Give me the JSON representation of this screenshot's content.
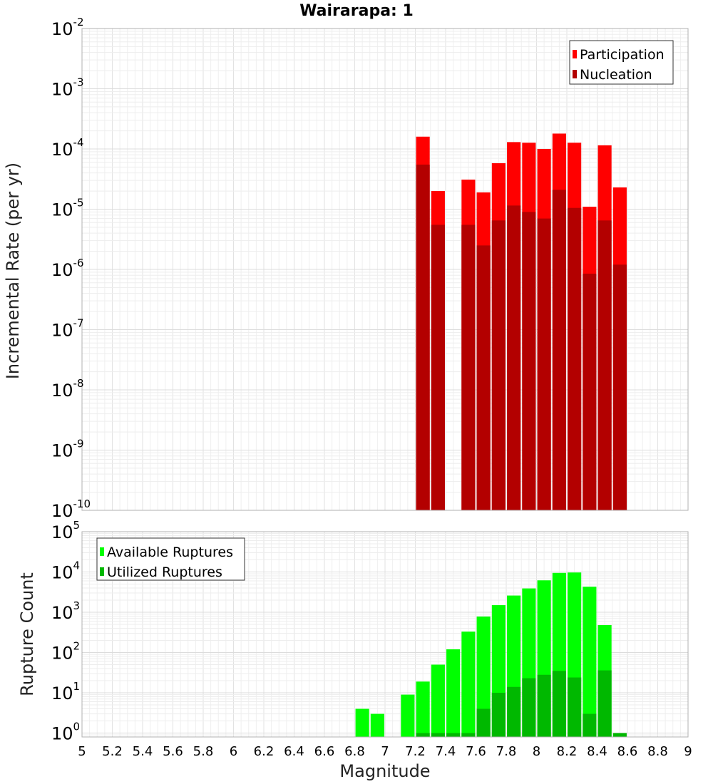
{
  "chart_data": [
    {
      "type": "bar",
      "title": "Wairarapa: 1",
      "xlabel": "",
      "ylabel": "Incremental Rate (per yr)",
      "yscale": "log",
      "ylim": [
        1e-10,
        0.01
      ],
      "xlim": [
        5,
        9
      ],
      "grid": true,
      "legend_position": "top-right",
      "x": [
        7.25,
        7.35,
        7.55,
        7.65,
        7.75,
        7.85,
        7.95,
        8.05,
        8.15,
        8.25,
        8.35,
        8.45,
        8.55
      ],
      "series": [
        {
          "name": "Participation",
          "color": "#ff0000",
          "values": [
            0.00016,
            2e-05,
            3.1e-05,
            1.9e-05,
            5.8e-05,
            0.00013,
            0.000127,
            0.0001,
            0.00018,
            0.000127,
            1.1e-05,
            0.000115,
            2.3e-05
          ]
        },
        {
          "name": "Nucleation",
          "color": "#b30000",
          "values": [
            5.5e-05,
            5.5e-06,
            5.5e-06,
            2.5e-06,
            6.5e-06,
            1.15e-05,
            9e-06,
            7e-06,
            2.1e-05,
            1.05e-05,
            8.5e-07,
            6.5e-06,
            1.2e-06
          ]
        }
      ]
    },
    {
      "type": "bar",
      "title": "",
      "xlabel": "Magnitude",
      "ylabel": "Rupture Count",
      "yscale": "log",
      "ylim": [
        0.8,
        100000
      ],
      "xlim": [
        5,
        9
      ],
      "grid": true,
      "legend_position": "top-left",
      "x": [
        6.85,
        6.95,
        7.15,
        7.25,
        7.35,
        7.45,
        7.55,
        7.65,
        7.75,
        7.85,
        7.95,
        8.05,
        8.15,
        8.25,
        8.35,
        8.45,
        8.55
      ],
      "series": [
        {
          "name": "Available Ruptures",
          "color": "#00ff00",
          "values": [
            4,
            3,
            9,
            19,
            50,
            120,
            330,
            780,
            1500,
            2600,
            3900,
            6200,
            9500,
            9700,
            4300,
            480,
            0
          ]
        },
        {
          "name": "Utilized Ruptures",
          "color": "#00b800",
          "values": [
            0,
            0,
            0,
            1,
            1,
            1,
            1,
            4,
            10,
            14,
            23,
            28,
            35,
            24,
            3,
            36,
            1
          ]
        }
      ]
    }
  ],
  "x_ticks": [
    "5",
    "5.2",
    "5.4",
    "5.6",
    "5.8",
    "6",
    "6.2",
    "6.4",
    "6.6",
    "6.8",
    "7",
    "7.2",
    "7.4",
    "7.6",
    "7.8",
    "8",
    "8.2",
    "8.4",
    "8.6",
    "8.8",
    "9"
  ],
  "top_y_ticks": [
    {
      "base": "10",
      "exp": "-10"
    },
    {
      "base": "10",
      "exp": "-9"
    },
    {
      "base": "10",
      "exp": "-8"
    },
    {
      "base": "10",
      "exp": "-7"
    },
    {
      "base": "10",
      "exp": "-6"
    },
    {
      "base": "10",
      "exp": "-5"
    },
    {
      "base": "10",
      "exp": "-4"
    },
    {
      "base": "10",
      "exp": "-3"
    },
    {
      "base": "10",
      "exp": "-2"
    }
  ],
  "bottom_y_ticks": [
    {
      "base": "10",
      "exp": "0"
    },
    {
      "base": "10",
      "exp": "1"
    },
    {
      "base": "10",
      "exp": "2"
    },
    {
      "base": "10",
      "exp": "3"
    },
    {
      "base": "10",
      "exp": "4"
    },
    {
      "base": "10",
      "exp": "5"
    }
  ]
}
